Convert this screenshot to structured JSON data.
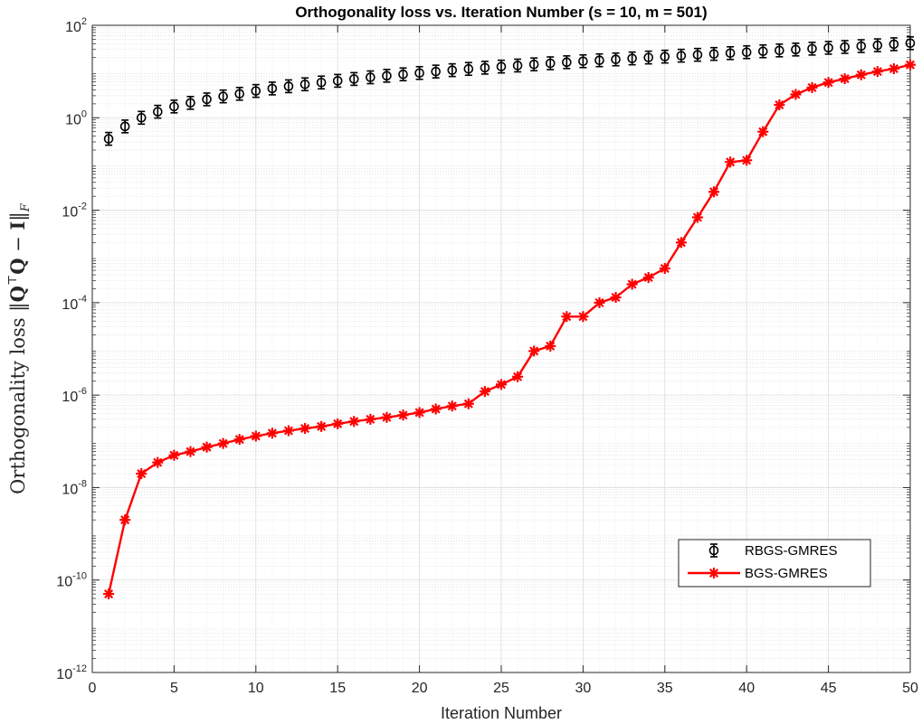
{
  "chart_data": {
    "type": "line",
    "title": "Orthogonality loss vs. Iteration Number (s = 10, m = 501)",
    "xlabel": "Iteration Number",
    "ylabel": "Orthogonality loss ||QᵀQ − I||_F",
    "ylabel_parts": {
      "text": "Orthogonality loss ",
      "norm_open": "‖",
      "q1": "Q",
      "transpose": "⊤",
      "q2": "Q",
      "minus": " − ",
      "identity": "I",
      "norm_close": "‖",
      "subscript": "F"
    },
    "xlim": [
      0,
      50
    ],
    "ylim": [
      1e-12,
      100
    ],
    "yscale": "log",
    "grid": true,
    "minor_grid": true,
    "x_ticks": [
      "0",
      "5",
      "10",
      "15",
      "20",
      "25",
      "30",
      "35",
      "40",
      "45",
      "50"
    ],
    "y_ticks": [
      {
        "base": "10",
        "exp": "-12"
      },
      {
        "base": "10",
        "exp": "-10"
      },
      {
        "base": "10",
        "exp": "-8"
      },
      {
        "base": "10",
        "exp": "-6"
      },
      {
        "base": "10",
        "exp": "-4"
      },
      {
        "base": "10",
        "exp": "-2"
      },
      {
        "base": "10",
        "exp": "0"
      },
      {
        "base": "10",
        "exp": "2"
      }
    ],
    "legend_position": "lower-right",
    "x": [
      1,
      2,
      3,
      4,
      5,
      6,
      7,
      8,
      9,
      10,
      11,
      12,
      13,
      14,
      15,
      16,
      17,
      18,
      19,
      20,
      21,
      22,
      23,
      24,
      25,
      26,
      27,
      28,
      29,
      30,
      31,
      32,
      33,
      34,
      35,
      36,
      37,
      38,
      39,
      40,
      41,
      42,
      43,
      44,
      45,
      46,
      47,
      48,
      49,
      50
    ],
    "series": [
      {
        "name": "RBGS-GMRES",
        "color": "#000000",
        "marker": "circle",
        "line": false,
        "error_bars": true,
        "values": [
          0.35,
          0.65,
          1.0,
          1.35,
          1.75,
          2.1,
          2.5,
          2.9,
          3.3,
          3.8,
          4.3,
          4.8,
          5.3,
          5.8,
          6.3,
          6.9,
          7.5,
          8.1,
          8.7,
          9.3,
          10.0,
          10.7,
          11.4,
          12.1,
          12.8,
          13.5,
          14.3,
          15.1,
          15.9,
          16.7,
          17.5,
          18.3,
          19.2,
          20.1,
          21.0,
          22.0,
          23.0,
          24.0,
          25.0,
          26.2,
          27.4,
          28.6,
          29.9,
          31.2,
          32.6,
          34.0,
          35.5,
          37.0,
          39.0,
          41.0
        ]
      },
      {
        "name": "BGS-GMRES",
        "color": "#ff0000",
        "marker": "asterisk",
        "line": true,
        "values": [
          5e-11,
          2e-09,
          2e-08,
          3.5e-08,
          5e-08,
          6e-08,
          7.5e-08,
          9e-08,
          1.1e-07,
          1.3e-07,
          1.5e-07,
          1.7e-07,
          1.9e-07,
          2.1e-07,
          2.4e-07,
          2.7e-07,
          3e-07,
          3.3e-07,
          3.7e-07,
          4.2e-07,
          5e-07,
          5.8e-07,
          6.5e-07,
          1.2e-06,
          1.7e-06,
          2.5e-06,
          9e-06,
          1.15e-05,
          5e-05,
          5e-05,
          0.0001,
          0.00013,
          0.00025,
          0.00035,
          0.00055,
          0.002,
          0.007,
          0.025,
          0.11,
          0.12,
          0.5,
          1.9,
          3.2,
          4.5,
          5.8,
          7.0,
          8.5,
          10.0,
          11.5,
          14.0
        ]
      }
    ]
  }
}
